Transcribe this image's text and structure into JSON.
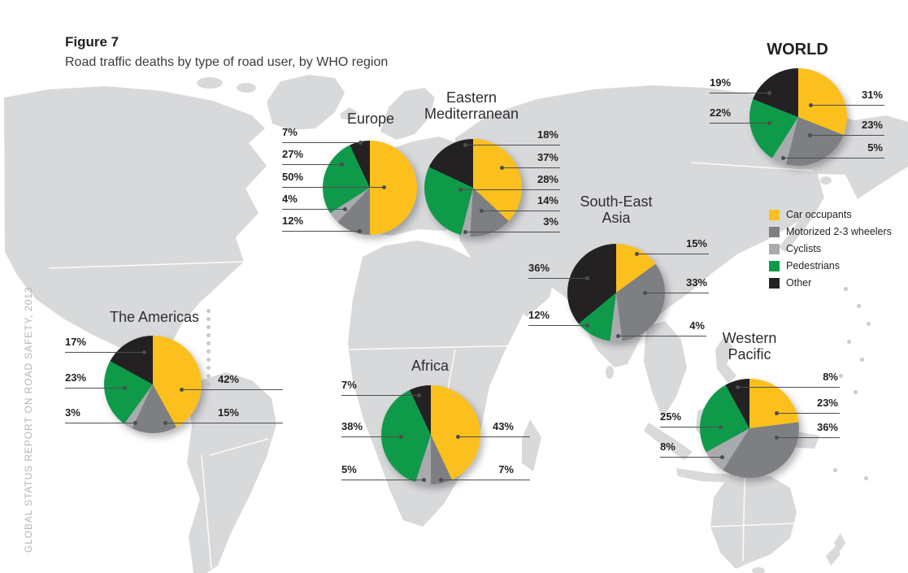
{
  "figure": {
    "label": "Figure 7",
    "title": "Road traffic deaths by type of road user, by WHO region"
  },
  "side_caption": "GLOBAL STATUS REPORT ON ROAD SAFETY, 2013",
  "legend": {
    "position": "right",
    "items": [
      {
        "label": "Car occupants",
        "color": "#FBC01D"
      },
      {
        "label": "Motorized 2-3 wheelers",
        "color": "#7D7F82"
      },
      {
        "label": "Cyclists",
        "color": "#A8AAAD"
      },
      {
        "label": "Pedestrians",
        "color": "#0F9A4A"
      },
      {
        "label": "Other",
        "color": "#242122"
      }
    ]
  },
  "map": {
    "description": "grey world map silhouette",
    "color": "#D8D9DB"
  },
  "chart_data": [
    {
      "type": "pie",
      "region": "WORLD",
      "title": "WORLD",
      "categories": [
        "Car occupants",
        "Motorized 2-3 wheelers",
        "Cyclists",
        "Pedestrians",
        "Other"
      ],
      "values": [
        31,
        23,
        5,
        22,
        19
      ],
      "labels": [
        "31%",
        "23%",
        "5%",
        "22%",
        "19%"
      ],
      "start_angle_deg": 0,
      "direction": "clockwise"
    },
    {
      "type": "pie",
      "region": "Europe",
      "title": "Europe",
      "categories": [
        "Car occupants",
        "Motorized 2-3 wheelers",
        "Cyclists",
        "Pedestrians",
        "Other"
      ],
      "values": [
        50,
        12,
        4,
        27,
        7
      ],
      "labels": [
        "50%",
        "12%",
        "4%",
        "27%",
        "7%"
      ],
      "start_angle_deg": 0,
      "direction": "clockwise"
    },
    {
      "type": "pie",
      "region": "Eastern Mediterranean",
      "title": "Eastern Mediterranean",
      "categories": [
        "Car occupants",
        "Motorized 2-3 wheelers",
        "Cyclists",
        "Pedestrians",
        "Other"
      ],
      "values": [
        37,
        14,
        3,
        28,
        18
      ],
      "labels": [
        "37%",
        "14%",
        "3%",
        "28%",
        "18%"
      ],
      "start_angle_deg": 0,
      "direction": "clockwise"
    },
    {
      "type": "pie",
      "region": "South-East Asia",
      "title": "South-East Asia",
      "categories": [
        "Car occupants",
        "Motorized 2-3 wheelers",
        "Cyclists",
        "Pedestrians",
        "Other"
      ],
      "values": [
        15,
        33,
        4,
        12,
        36
      ],
      "labels": [
        "15%",
        "33%",
        "4%",
        "12%",
        "36%"
      ],
      "start_angle_deg": 0,
      "direction": "clockwise"
    },
    {
      "type": "pie",
      "region": "The Americas",
      "title": "The Americas",
      "categories": [
        "Car occupants",
        "Motorized 2-3 wheelers",
        "Cyclists",
        "Pedestrians",
        "Other"
      ],
      "values": [
        42,
        15,
        3,
        23,
        17
      ],
      "labels": [
        "42%",
        "15%",
        "3%",
        "23%",
        "17%"
      ],
      "start_angle_deg": 0,
      "direction": "clockwise"
    },
    {
      "type": "pie",
      "region": "Africa",
      "title": "Africa",
      "categories": [
        "Car occupants",
        "Motorized 2-3 wheelers",
        "Cyclists",
        "Pedestrians",
        "Other"
      ],
      "values": [
        43,
        7,
        5,
        38,
        7
      ],
      "labels": [
        "43%",
        "7%",
        "5%",
        "38%",
        "7%"
      ],
      "start_angle_deg": 0,
      "direction": "clockwise"
    },
    {
      "type": "pie",
      "region": "Western Pacific",
      "title": "Western Pacific",
      "categories": [
        "Car occupants",
        "Motorized 2-3 wheelers",
        "Cyclists",
        "Pedestrians",
        "Other"
      ],
      "values": [
        23,
        36,
        8,
        25,
        8
      ],
      "labels": [
        "23%",
        "36%",
        "8%",
        "25%",
        "8%"
      ],
      "start_angle_deg": 0,
      "direction": "clockwise"
    }
  ]
}
